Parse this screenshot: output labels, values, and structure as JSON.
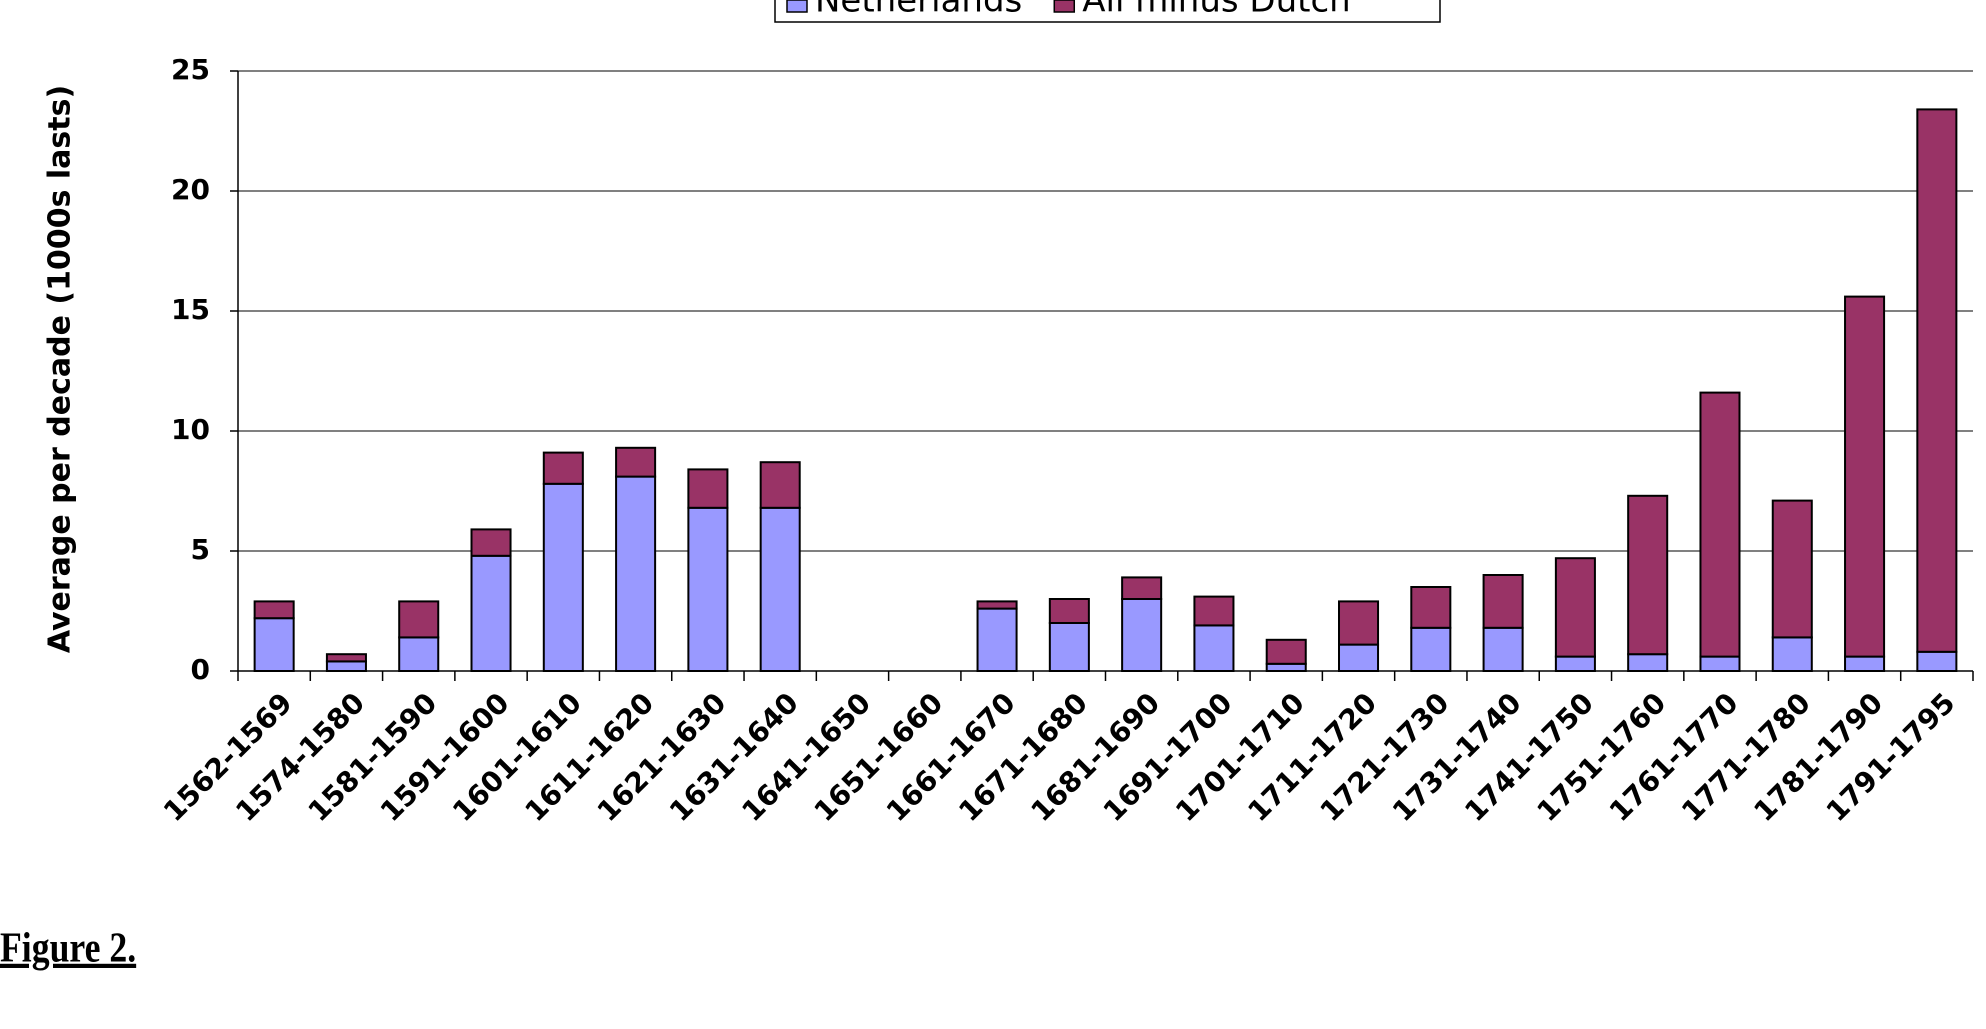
{
  "chart_data": {
    "type": "stacked_bar",
    "y_label": "Average per decade (1000s lasts)",
    "caption": "Figure 2.",
    "categories": [
      "1562-1569",
      "1574-1580",
      "1581-1590",
      "1591-1600",
      "1601-1610",
      "1611-1620",
      "1621-1630",
      "1631-1640",
      "1641-1650",
      "1651-1660",
      "1661-1670",
      "1671-1680",
      "1681-1690",
      "1691-1700",
      "1701-1710",
      "1711-1720",
      "1721-1730",
      "1731-1740",
      "1741-1750",
      "1751-1760",
      "1761-1770",
      "1771-1780",
      "1781-1790",
      "1791-1795"
    ],
    "series": [
      {
        "name": "Netherlands",
        "color": "#9999ff",
        "values": [
          2.2,
          0.4,
          1.4,
          4.8,
          7.8,
          8.1,
          6.8,
          6.8,
          null,
          null,
          2.6,
          2.0,
          3.0,
          1.9,
          0.3,
          1.1,
          1.8,
          1.8,
          0.6,
          0.7,
          0.6,
          1.4,
          0.6,
          0.8
        ]
      },
      {
        "name": "All minus Dutch",
        "color": "#993366",
        "values": [
          0.7,
          0.3,
          1.5,
          1.1,
          1.3,
          1.2,
          1.6,
          1.9,
          null,
          null,
          0.3,
          1.0,
          0.9,
          1.2,
          1.0,
          1.8,
          1.7,
          2.2,
          4.1,
          6.6,
          11.0,
          5.7,
          15.0,
          22.6
        ]
      }
    ],
    "ylim": [
      0,
      25
    ],
    "yticks": [
      0,
      5,
      10,
      15,
      20,
      25
    ],
    "grid": true,
    "legend": "top"
  }
}
